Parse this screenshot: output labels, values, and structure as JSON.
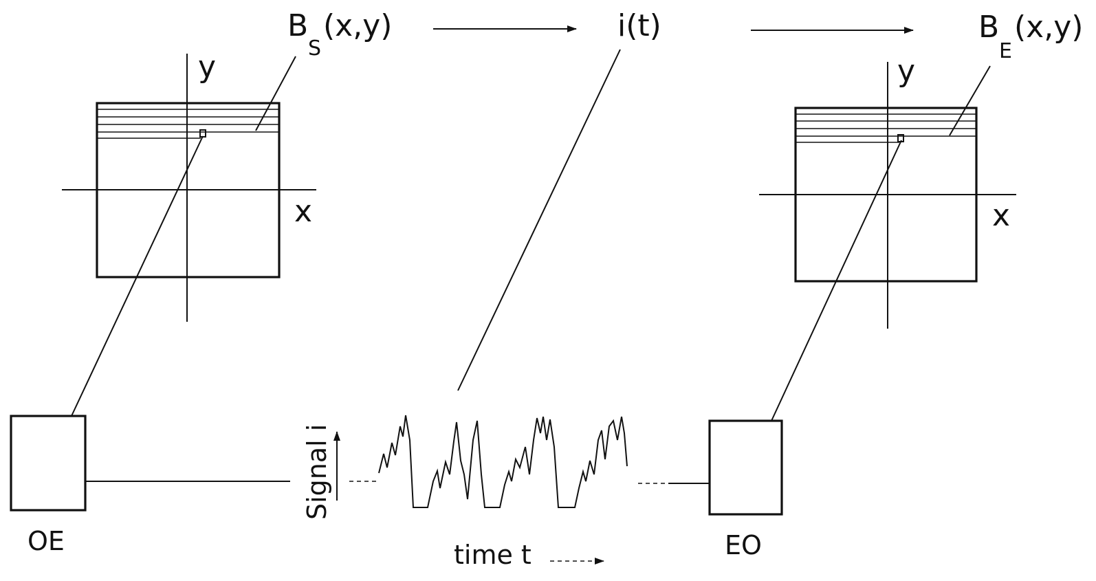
{
  "labels": {
    "source_brightness_main": "B",
    "source_brightness_sub": "S",
    "source_brightness_args": "(x,y)",
    "signal_label": "i(t)",
    "emitted_brightness_main": "B",
    "emitted_brightness_sub": "E",
    "emitted_brightness_args": "(x,y)",
    "axis_y_left": "y",
    "axis_x_left": "x",
    "axis_y_right": "y",
    "axis_x_right": "x",
    "converter_left": "OE",
    "converter_right": "EO",
    "signal_axis": "Signal i",
    "time_axis": "time t"
  },
  "colors": {
    "ink": "#111111",
    "paper": "#ffffff"
  }
}
